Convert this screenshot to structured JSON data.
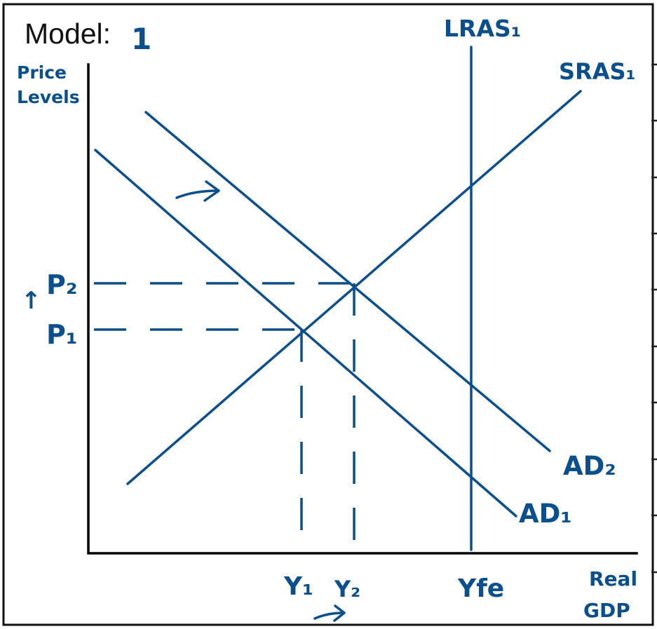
{
  "colors": {
    "ink": "#0b4f8c",
    "axis": "#000000",
    "frame": "#111111"
  },
  "title": {
    "label": "Model:",
    "number": "1"
  },
  "axes": {
    "y_label_line1": "Price",
    "y_label_line2": "Levels",
    "x_label_line1": "Real",
    "x_label_line2": "GDP"
  },
  "curves": {
    "lras": "LRAS₁",
    "sras": "SRAS₁",
    "ad1": "AD₁",
    "ad2": "AD₂"
  },
  "levels": {
    "p1": "P₁",
    "p2": "P₂",
    "y1": "Y₁",
    "y2": "Y₂",
    "yfe": "Yfe"
  },
  "annotations": {
    "price_up_arrow": "↑",
    "ad_shift_arrow": "right-arrow",
    "output_shift_arrow": "right-arrow"
  }
}
